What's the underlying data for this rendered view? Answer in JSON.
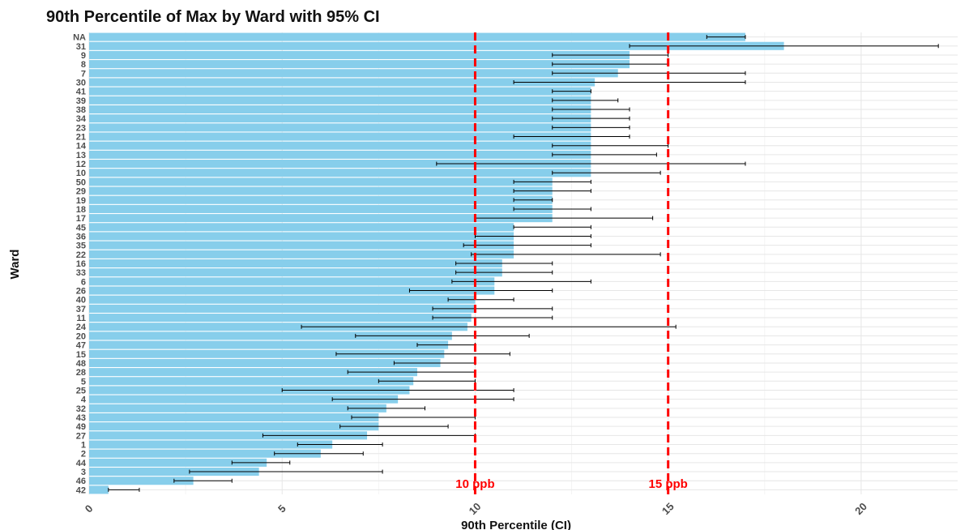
{
  "chart_data": {
    "type": "bar",
    "orientation": "horizontal",
    "title": "90th Percentile of Max by Ward with 95% CI",
    "xlabel": "90th Percentile (CI)",
    "ylabel": "Ward",
    "xlim": [
      0,
      22.5
    ],
    "xticks": [
      0,
      5,
      10,
      15,
      20
    ],
    "grid": true,
    "bar_color": "#87CEEB",
    "errorbar_color": "#000000",
    "categories": [
      "NA",
      "31",
      "9",
      "8",
      "7",
      "30",
      "41",
      "39",
      "38",
      "34",
      "23",
      "21",
      "14",
      "13",
      "12",
      "10",
      "50",
      "29",
      "19",
      "18",
      "17",
      "45",
      "36",
      "35",
      "22",
      "16",
      "33",
      "6",
      "26",
      "40",
      "37",
      "11",
      "24",
      "20",
      "47",
      "15",
      "48",
      "28",
      "5",
      "25",
      "4",
      "32",
      "43",
      "49",
      "27",
      "1",
      "2",
      "44",
      "3",
      "46",
      "42"
    ],
    "values": [
      17,
      18,
      14,
      14,
      13.7,
      13.1,
      13,
      13,
      13,
      13,
      13,
      13,
      13,
      13,
      13,
      13,
      12,
      12,
      12,
      12,
      12,
      11,
      11,
      11,
      11,
      10.7,
      10.7,
      10.5,
      10.5,
      10,
      10,
      9.9,
      9.8,
      9.4,
      9.3,
      9.2,
      9.1,
      8.5,
      8.4,
      8.3,
      8,
      7.7,
      7.5,
      7.5,
      7.2,
      6.3,
      6,
      4.6,
      4.4,
      2.7,
      0.5
    ],
    "ci_low": [
      16,
      14,
      12,
      12,
      12,
      11,
      12,
      12,
      12,
      12,
      12,
      11,
      12,
      12,
      9,
      12,
      11,
      11,
      11,
      11,
      10,
      11,
      10,
      9.7,
      9.9,
      9.5,
      9.5,
      9.4,
      8.3,
      9.3,
      8.9,
      8.9,
      5.5,
      6.9,
      8.5,
      6.4,
      7.9,
      6.7,
      7.5,
      5,
      6.3,
      6.7,
      6.8,
      6.5,
      4.5,
      5.4,
      4.8,
      3.7,
      2.6,
      2.2,
      0.5
    ],
    "ci_high": [
      17,
      22,
      15,
      15,
      17,
      17,
      13,
      13.7,
      14,
      14,
      14,
      14,
      15,
      14.7,
      17,
      14.8,
      13,
      13,
      12,
      13,
      14.6,
      13,
      13,
      13,
      14.8,
      12,
      12,
      13,
      12,
      11,
      12,
      12,
      15.2,
      11.4,
      10,
      10.9,
      10,
      10,
      10,
      11,
      11,
      8.7,
      10,
      9.3,
      10,
      7.6,
      7.1,
      5.2,
      7.6,
      3.7,
      1.3
    ],
    "annotations": [
      {
        "x": 10,
        "label": "10 ppb",
        "color": "#FF0000",
        "style": "dashed"
      },
      {
        "x": 15,
        "label": "15 ppb",
        "color": "#FF0000",
        "style": "dashed"
      }
    ]
  }
}
